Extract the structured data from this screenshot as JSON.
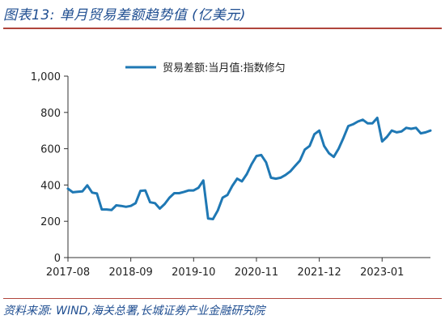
{
  "header": {
    "title": "图表13:  单月贸易差额趋势值 (亿美元)"
  },
  "footer": {
    "source": "资料来源: WIND,海关总署,长城证券产业金融研究院"
  },
  "chart_data": {
    "type": "line",
    "title": "",
    "xlabel": "",
    "ylabel": "",
    "ylim": [
      0,
      1000
    ],
    "yticks": [
      0,
      200,
      400,
      600,
      800,
      1000
    ],
    "ytick_labels": [
      "0",
      "200",
      "400",
      "600",
      "800",
      "1,000"
    ],
    "xtick_labels": [
      "2017-08",
      "2018-09",
      "2019-10",
      "2020-11",
      "2021-12",
      "2023-01"
    ],
    "xtick_indices": [
      0,
      13,
      26,
      39,
      52,
      65
    ],
    "legend_position": "top-center",
    "grid": false,
    "color": "#1f78b4",
    "series": [
      {
        "name": "贸易差额:当月值:指数修匀",
        "values": [
          380,
          360,
          363,
          365,
          398,
          358,
          353,
          265,
          265,
          262,
          288,
          285,
          280,
          285,
          300,
          368,
          370,
          305,
          300,
          270,
          295,
          330,
          355,
          355,
          362,
          370,
          370,
          385,
          425,
          215,
          212,
          260,
          330,
          345,
          395,
          435,
          420,
          460,
          515,
          560,
          565,
          525,
          440,
          435,
          440,
          455,
          475,
          505,
          535,
          595,
          615,
          680,
          700,
          615,
          575,
          555,
          600,
          660,
          725,
          735,
          750,
          760,
          740,
          740,
          770,
          640,
          665,
          700,
          690,
          695,
          715,
          710,
          715,
          685,
          690,
          700
        ]
      }
    ]
  }
}
